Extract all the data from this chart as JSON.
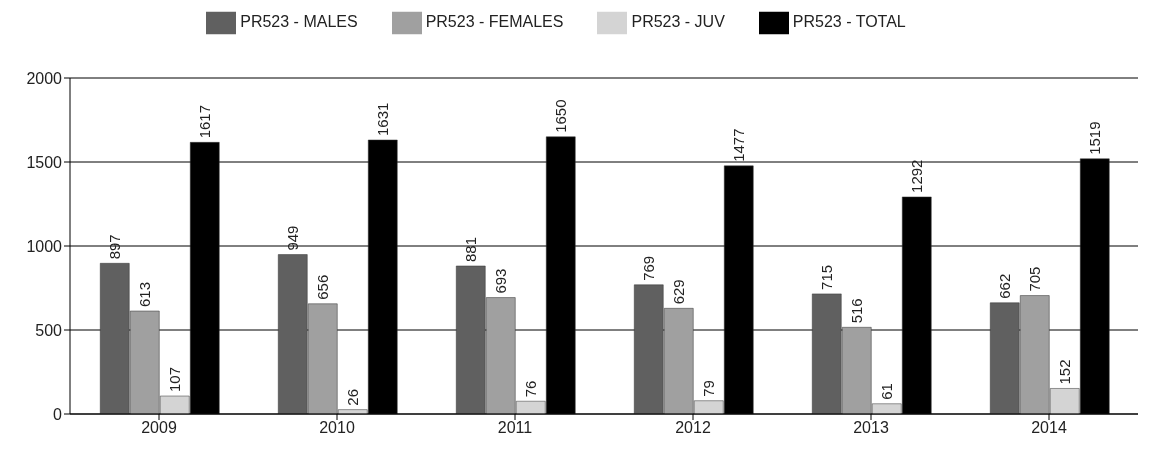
{
  "chart_data": {
    "type": "bar",
    "categories": [
      "2009",
      "2010",
      "2011",
      "2012",
      "2013",
      "2014"
    ],
    "series": [
      {
        "name": "PR523 - MALES",
        "color": "#606060",
        "values": [
          897,
          949,
          881,
          769,
          715,
          662
        ]
      },
      {
        "name": "PR523 - FEMALES",
        "color": "#a0a0a0",
        "values": [
          613,
          656,
          693,
          629,
          516,
          705
        ]
      },
      {
        "name": "PR523 - JUV",
        "color": "#d4d4d4",
        "values": [
          107,
          26,
          76,
          79,
          61,
          152
        ]
      },
      {
        "name": "PR523 - TOTAL",
        "color": "#000000",
        "values": [
          1617,
          1631,
          1650,
          1477,
          1292,
          1519
        ]
      }
    ],
    "ylim": [
      0,
      2000
    ],
    "yticks": [
      0,
      500,
      1000,
      1500,
      2000
    ],
    "grid": "y",
    "legend": "top",
    "data_labels": true
  }
}
